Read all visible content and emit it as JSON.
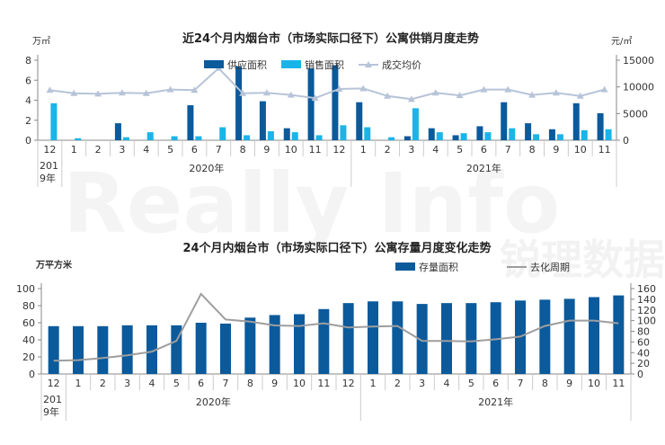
{
  "chart_data": [
    {
      "type": "bar+line",
      "title": "近24个月内烟台市（市场实际口径下）公寓供销月度走势",
      "ylabel_left": "万㎡",
      "ylabel_right": "元/㎡",
      "ylim_left": [
        0,
        8
      ],
      "ylim_right": [
        0,
        15000
      ],
      "yticks_left": [
        "0",
        "2",
        "4",
        "6",
        "8"
      ],
      "yticks_right": [
        "0",
        "5000",
        "10000",
        "15000"
      ],
      "categories": [
        "12",
        "1",
        "2",
        "3",
        "4",
        "5",
        "6",
        "7",
        "8",
        "9",
        "10",
        "11",
        "12",
        "1",
        "2",
        "3",
        "4",
        "5",
        "6",
        "7",
        "8",
        "9",
        "10",
        "11"
      ],
      "year_labels": [
        {
          "label": "201\n9年",
          "start": 0,
          "end": 0
        },
        {
          "label": "2020年",
          "start": 1,
          "end": 12
        },
        {
          "label": "2021年",
          "start": 13,
          "end": 23
        }
      ],
      "series": [
        {
          "name": "供应面积",
          "kind": "bar",
          "axis": "left",
          "color": "#0a5a9c",
          "values": [
            0,
            0,
            0,
            1.7,
            0,
            0,
            3.5,
            0,
            7.4,
            3.9,
            1.2,
            7.2,
            7.5,
            3.8,
            0,
            0.4,
            1.2,
            0.5,
            1.4,
            3.8,
            1.7,
            1.1,
            3.7,
            2.7
          ]
        },
        {
          "name": "销售面积",
          "kind": "bar",
          "axis": "left",
          "color": "#1ab4e8",
          "values": [
            3.7,
            0.2,
            0,
            0.3,
            0.8,
            0.4,
            0.4,
            1.3,
            0.5,
            0.9,
            0.8,
            0.5,
            1.5,
            1.3,
            0.3,
            3.2,
            0.8,
            0.7,
            0.8,
            1.2,
            0.6,
            0.6,
            1.0,
            1.1
          ]
        },
        {
          "name": "成交均价",
          "kind": "line",
          "axis": "right",
          "color": "#b7c4d8",
          "values": [
            9400,
            8800,
            8700,
            8900,
            8800,
            9500,
            9400,
            13500,
            8800,
            8900,
            8500,
            7900,
            9600,
            9700,
            8300,
            7700,
            8900,
            8400,
            9500,
            9500,
            8500,
            8900,
            8300,
            9500
          ]
        }
      ]
    },
    {
      "type": "bar+line",
      "title": "24个月内烟台市（市场实际口径下）公寓存量月度变化走势",
      "ylabel_left": "万平方米",
      "ylim_left": [
        0,
        100
      ],
      "ylim_right": [
        0,
        160
      ],
      "yticks_left": [
        "0",
        "20",
        "40",
        "60",
        "80",
        "100"
      ],
      "yticks_right": [
        "0",
        "20",
        "40",
        "60",
        "80",
        "100",
        "120",
        "140",
        "160"
      ],
      "categories": [
        "12",
        "1",
        "2",
        "3",
        "4",
        "5",
        "6",
        "7",
        "8",
        "9",
        "10",
        "11",
        "12",
        "1",
        "2",
        "3",
        "4",
        "5",
        "6",
        "7",
        "8",
        "9",
        "10",
        "11"
      ],
      "year_labels": [
        {
          "label": "201\n9年",
          "start": 0,
          "end": 0
        },
        {
          "label": "2020年",
          "start": 1,
          "end": 12
        },
        {
          "label": "2021年",
          "start": 13,
          "end": 23
        }
      ],
      "series": [
        {
          "name": "存量面积",
          "kind": "bar",
          "axis": "left",
          "color": "#0a5a9c",
          "values": [
            56,
            56,
            56,
            57,
            57,
            57,
            60,
            59,
            66,
            69,
            70,
            76,
            83,
            85,
            85,
            82,
            83,
            83,
            84,
            86,
            87,
            88,
            90,
            92
          ]
        },
        {
          "name": "去化周期",
          "kind": "line",
          "axis": "right",
          "color": "#9e9e9e",
          "values": [
            25,
            26,
            30,
            35,
            42,
            62,
            150,
            102,
            98,
            91,
            90,
            95,
            87,
            89,
            90,
            62,
            62,
            61,
            65,
            70,
            90,
            100,
            100,
            95
          ]
        }
      ]
    }
  ],
  "watermark": "Really Info 锐理数据"
}
